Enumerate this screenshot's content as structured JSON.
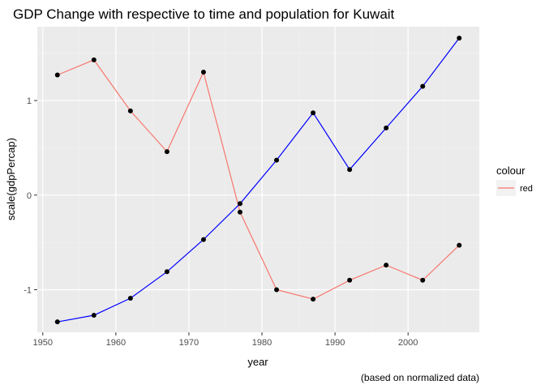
{
  "chart_data": {
    "type": "line",
    "title": "GDP Change with respective to time and population for Kuwait",
    "xlabel": "year",
    "ylabel": "scale(gdpPercap)",
    "caption": "(based on normalized data)",
    "xlim": [
      1949.25,
      2009.75
    ],
    "ylim": [
      -1.45,
      1.78
    ],
    "x_ticks": [
      1950,
      1960,
      1970,
      1980,
      1990,
      2000
    ],
    "y_ticks": [
      -1,
      0,
      1
    ],
    "x_tick_labels": [
      "1950",
      "1960",
      "1970",
      "1980",
      "1990",
      "2000"
    ],
    "y_tick_labels": [
      "-1",
      "0",
      "1"
    ],
    "grid": true,
    "x": [
      1952,
      1957,
      1962,
      1967,
      1972,
      1977,
      1982,
      1987,
      1992,
      1997,
      2002,
      2007
    ],
    "series": [
      {
        "name": "red",
        "color": "#f8766d",
        "values": [
          1.27,
          1.43,
          0.89,
          0.46,
          1.3,
          -0.18,
          -1.0,
          -1.1,
          -0.9,
          -0.74,
          -0.9,
          -0.53
        ]
      },
      {
        "name": "",
        "color": "#0000ff",
        "values": [
          -1.34,
          -1.27,
          -1.09,
          -0.81,
          -0.47,
          -0.09,
          0.37,
          0.87,
          0.27,
          0.71,
          1.15,
          1.66
        ]
      }
    ],
    "point_color": "#000000",
    "legend": {
      "title": "colour",
      "placement": "right",
      "entries": [
        {
          "label": "red",
          "color": "#f8766d"
        }
      ]
    }
  }
}
